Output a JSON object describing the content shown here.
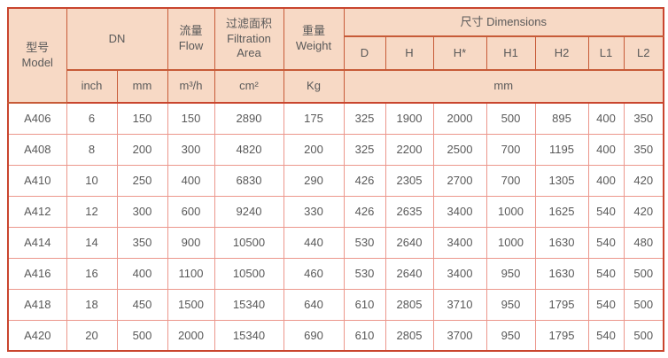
{
  "table": {
    "columns": {
      "model": "型号\nModel",
      "dn": "DN",
      "flow": "流量\nFlow",
      "filtration_area": "过滤面积\nFiltration\nArea",
      "weight": "重量\nWeight",
      "dimensions": "尺寸 Dimensions",
      "dim_subcols": [
        "D",
        "H",
        "H*",
        "H1",
        "H2",
        "L1",
        "L2"
      ],
      "units": {
        "dn_inch": "inch",
        "dn_mm": "mm",
        "flow": "m³/h",
        "area": "cm²",
        "weight": "Kg",
        "dimensions": "mm"
      }
    },
    "rows": [
      [
        "A406",
        "6",
        "150",
        "150",
        "2890",
        "175",
        "325",
        "1900",
        "2000",
        "500",
        "895",
        "400",
        "350"
      ],
      [
        "A408",
        "8",
        "200",
        "300",
        "4820",
        "200",
        "325",
        "2200",
        "2500",
        "700",
        "1195",
        "400",
        "350"
      ],
      [
        "A410",
        "10",
        "250",
        "400",
        "6830",
        "290",
        "426",
        "2305",
        "2700",
        "700",
        "1305",
        "400",
        "420"
      ],
      [
        "A412",
        "12",
        "300",
        "600",
        "9240",
        "330",
        "426",
        "2635",
        "3400",
        "1000",
        "1625",
        "540",
        "420"
      ],
      [
        "A414",
        "14",
        "350",
        "900",
        "10500",
        "440",
        "530",
        "2640",
        "3400",
        "1000",
        "1630",
        "540",
        "480"
      ],
      [
        "A416",
        "16",
        "400",
        "1100",
        "10500",
        "460",
        "530",
        "2640",
        "3400",
        "950",
        "1630",
        "540",
        "500"
      ],
      [
        "A418",
        "18",
        "450",
        "1500",
        "15340",
        "640",
        "610",
        "2805",
        "3710",
        "950",
        "1795",
        "540",
        "500"
      ],
      [
        "A420",
        "20",
        "500",
        "2000",
        "15340",
        "690",
        "610",
        "2805",
        "3700",
        "950",
        "1795",
        "540",
        "500"
      ]
    ],
    "colors": {
      "outer_border": "#c9452e",
      "header_grid": "#c75b38",
      "header_bg": "#f7d9c5",
      "data_grid": "#ec978c",
      "text": "#595959"
    }
  }
}
